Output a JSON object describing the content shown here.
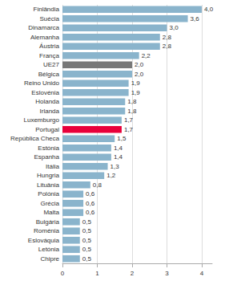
{
  "chart_data": {
    "type": "bar",
    "orientation": "horizontal",
    "categories": [
      "Finlândia",
      "Suécia",
      "Dinamarca",
      "Alemanha",
      "Áustria",
      "França",
      "UE27",
      "Bélgica",
      "Reino Unido",
      "Eslovénia",
      "Holanda",
      "Irlanda",
      "Luxemburgo",
      "Portugal",
      "República Checa",
      "Estónia",
      "Espanha",
      "Itália",
      "Hungria",
      "Lituânia",
      "Polónia",
      "Grécia",
      "Malta",
      "Bulgária",
      "Roménia",
      "Eslováquia",
      "Letónia",
      "Chipre"
    ],
    "values": [
      4.0,
      3.6,
      3.0,
      2.8,
      2.8,
      2.2,
      2.0,
      2.0,
      1.9,
      1.9,
      1.8,
      1.8,
      1.7,
      1.7,
      1.5,
      1.4,
      1.4,
      1.3,
      1.2,
      0.8,
      0.6,
      0.6,
      0.6,
      0.5,
      0.5,
      0.5,
      0.5,
      0.5
    ],
    "value_labels": [
      "4,0",
      "3,6",
      "3,0",
      "2,8",
      "2,8",
      "2,2",
      "2,0",
      "2,0",
      "1,9",
      "1,9",
      "1,8",
      "1,8",
      "1,7",
      "1,7",
      "1,5",
      "1,4",
      "1,4",
      "1,3",
      "1,2",
      "0,8",
      "0,6",
      "0,6",
      "0,6",
      "0,5",
      "0,5",
      "0,5",
      "0,5",
      "0,5"
    ],
    "colors": [
      "#8ab4cc",
      "#8ab4cc",
      "#8ab4cc",
      "#8ab4cc",
      "#8ab4cc",
      "#8ab4cc",
      "#787878",
      "#8ab4cc",
      "#8ab4cc",
      "#8ab4cc",
      "#8ab4cc",
      "#8ab4cc",
      "#8ab4cc",
      "#e8003a",
      "#8ab4cc",
      "#8ab4cc",
      "#8ab4cc",
      "#8ab4cc",
      "#8ab4cc",
      "#8ab4cc",
      "#8ab4cc",
      "#8ab4cc",
      "#8ab4cc",
      "#8ab4cc",
      "#8ab4cc",
      "#8ab4cc",
      "#8ab4cc",
      "#8ab4cc"
    ],
    "xlim": [
      0,
      4.3
    ],
    "xticks": [
      0,
      1,
      2,
      3,
      4
    ],
    "grid": true,
    "data_labels": true
  }
}
